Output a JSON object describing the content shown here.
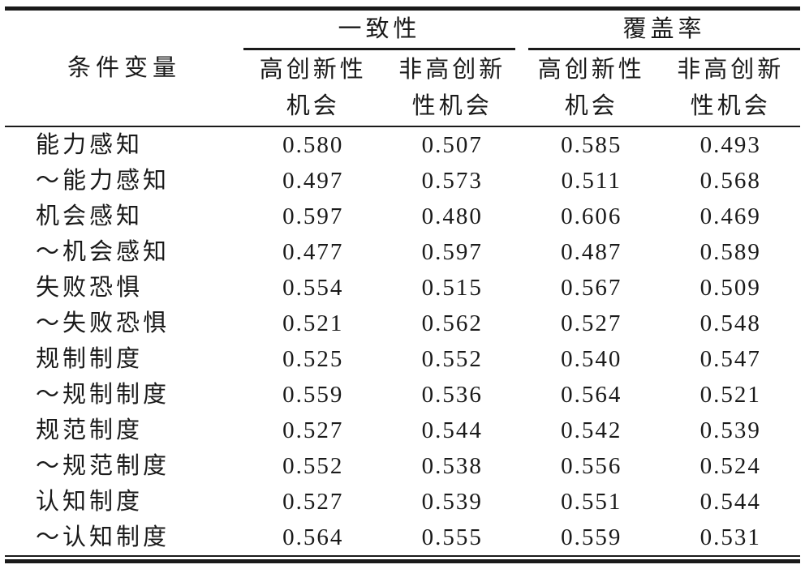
{
  "colors": {
    "background": "#ffffff",
    "text": "#1a1a1a",
    "rule": "#1a1a1a"
  },
  "table": {
    "col_header": "条件变量",
    "groups": [
      {
        "label": "一致性",
        "subcols": [
          {
            "line1": "高创新性",
            "line2": "机会"
          },
          {
            "line1": "非高创新",
            "line2": "性机会"
          }
        ]
      },
      {
        "label": "覆盖率",
        "subcols": [
          {
            "line1": "高创新性",
            "line2": "机会"
          },
          {
            "line1": "非高创新",
            "line2": "性机会"
          }
        ]
      }
    ],
    "rows": [
      {
        "label": "能力感知",
        "values": [
          "0.580",
          "0.507",
          "0.585",
          "0.493"
        ]
      },
      {
        "label": "～能力感知",
        "values": [
          "0.497",
          "0.573",
          "0.511",
          "0.568"
        ]
      },
      {
        "label": "机会感知",
        "values": [
          "0.597",
          "0.480",
          "0.606",
          "0.469"
        ]
      },
      {
        "label": "～机会感知",
        "values": [
          "0.477",
          "0.597",
          "0.487",
          "0.589"
        ]
      },
      {
        "label": "失败恐惧",
        "values": [
          "0.554",
          "0.515",
          "0.567",
          "0.509"
        ]
      },
      {
        "label": "～失败恐惧",
        "values": [
          "0.521",
          "0.562",
          "0.527",
          "0.548"
        ]
      },
      {
        "label": "规制制度",
        "values": [
          "0.525",
          "0.552",
          "0.540",
          "0.547"
        ]
      },
      {
        "label": "～规制制度",
        "values": [
          "0.559",
          "0.536",
          "0.564",
          "0.521"
        ]
      },
      {
        "label": "规范制度",
        "values": [
          "0.527",
          "0.544",
          "0.542",
          "0.539"
        ]
      },
      {
        "label": "～规范制度",
        "values": [
          "0.552",
          "0.538",
          "0.556",
          "0.524"
        ]
      },
      {
        "label": "认知制度",
        "values": [
          "0.527",
          "0.539",
          "0.551",
          "0.544"
        ]
      },
      {
        "label": "～认知制度",
        "values": [
          "0.564",
          "0.555",
          "0.559",
          "0.531"
        ]
      }
    ]
  }
}
